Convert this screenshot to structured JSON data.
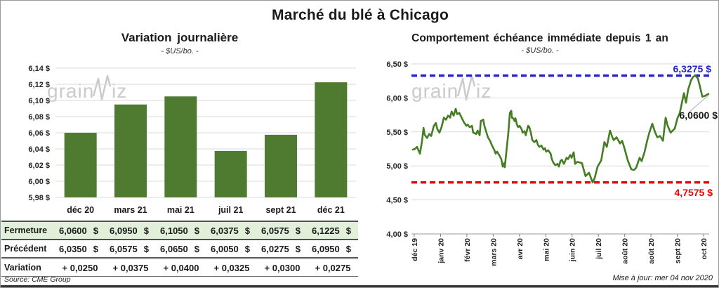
{
  "title": "Marché du blé à Chicago",
  "watermark": {
    "text": "grainwiz"
  },
  "footer": {
    "source": "Source: CME Group",
    "updated": "Mise à jour: mer 04 nov 2020"
  },
  "colors": {
    "bar_green": "#4e7b2f",
    "line_green": "#447d22",
    "upper_ref_blue": "#2222cc",
    "lower_ref_red": "#ee0000",
    "variation_green": "#008200",
    "fermeture_row_bg": "#e2efd9",
    "gridline": "#d9d9d9",
    "watermark_gray": "#cbcbcb"
  },
  "table": {
    "row_labels": [
      "Fermeture",
      "Précédent",
      "Variation"
    ],
    "columns": [
      "déc 20",
      "mars 21",
      "mai 21",
      "juil 21",
      "sept 21",
      "déc 21"
    ],
    "fermeture": [
      "6,0600",
      "6,0950",
      "6,1050",
      "6,0375",
      "6,0575",
      "6,1225"
    ],
    "precedent": [
      "6,0350",
      "6,0575",
      "6,0650",
      "6,0050",
      "6,0275",
      "6,0950"
    ],
    "variation": [
      "+ 0,0250",
      "+ 0,0375",
      "+ 0,0400",
      "+ 0,0325",
      "+ 0,0300",
      "+ 0,0275"
    ],
    "currency": "$"
  },
  "chart_data": [
    {
      "type": "bar",
      "title": "Variation journalière",
      "subtitle": "- $US/bo. -",
      "categories": [
        "déc 20",
        "mars 21",
        "mai 21",
        "juil 21",
        "sept 21",
        "déc 21"
      ],
      "values": [
        6.06,
        6.095,
        6.105,
        6.0375,
        6.0575,
        6.1225
      ],
      "ylim": [
        5.98,
        6.14
      ],
      "ytick_labels": [
        "6,14 $",
        "6,12 $",
        "6,10 $",
        "6,08 $",
        "6,06 $",
        "6,04 $",
        "6,02 $",
        "6,00 $",
        "5,98 $"
      ],
      "bar_color": "#4e7b2f",
      "grid": true,
      "legend": "none"
    },
    {
      "type": "line",
      "title": "Comportement échéance immédiate depuis 1 an",
      "subtitle": "- $US/bo. -",
      "x_tick_labels": [
        "déc 19",
        "janv 20",
        "févr 20",
        "mars 20",
        "avr 20",
        "mai 20",
        "juin 20",
        "juil 20",
        "août 20",
        "août 20",
        "sept 20",
        "oct 20"
      ],
      "ylim": [
        4.0,
        6.5
      ],
      "ytick_labels": [
        "6,50 $",
        "6,00 $",
        "5,50 $",
        "5,00 $",
        "4,50 $",
        "4,00 $"
      ],
      "grid": true,
      "legend": "none",
      "ref_lines": [
        {
          "value": 6.3275,
          "label": "6,3275 $",
          "color": "#2222cc"
        },
        {
          "value": 4.7575,
          "label": "4,7575 $",
          "color": "#ee0000"
        }
      ],
      "last_point_label": "6,0600 $",
      "last_value": 6.06,
      "series": [
        {
          "color": "#447d22",
          "points": [
            [
              0.0,
              5.24
            ],
            [
              0.007,
              5.25
            ],
            [
              0.014,
              5.28
            ],
            [
              0.024,
              5.18
            ],
            [
              0.031,
              5.37
            ],
            [
              0.036,
              5.56
            ],
            [
              0.04,
              5.46
            ],
            [
              0.048,
              5.41
            ],
            [
              0.055,
              5.47
            ],
            [
              0.062,
              5.44
            ],
            [
              0.071,
              5.59
            ],
            [
              0.078,
              5.63
            ],
            [
              0.083,
              5.54
            ],
            [
              0.09,
              5.49
            ],
            [
              0.097,
              5.57
            ],
            [
              0.105,
              5.71
            ],
            [
              0.112,
              5.68
            ],
            [
              0.119,
              5.74
            ],
            [
              0.126,
              5.71
            ],
            [
              0.131,
              5.8
            ],
            [
              0.138,
              5.74
            ],
            [
              0.145,
              5.84
            ],
            [
              0.15,
              5.76
            ],
            [
              0.157,
              5.78
            ],
            [
              0.166,
              5.7
            ],
            [
              0.173,
              5.64
            ],
            [
              0.181,
              5.59
            ],
            [
              0.185,
              5.61
            ],
            [
              0.192,
              5.57
            ],
            [
              0.2,
              5.59
            ],
            [
              0.204,
              5.49
            ],
            [
              0.214,
              5.47
            ],
            [
              0.219,
              5.52
            ],
            [
              0.226,
              5.45
            ],
            [
              0.23,
              5.66
            ],
            [
              0.238,
              5.68
            ],
            [
              0.242,
              5.59
            ],
            [
              0.249,
              5.49
            ],
            [
              0.254,
              5.42
            ],
            [
              0.261,
              5.37
            ],
            [
              0.268,
              5.3
            ],
            [
              0.276,
              5.23
            ],
            [
              0.28,
              5.18
            ],
            [
              0.285,
              5.21
            ],
            [
              0.292,
              5.16
            ],
            [
              0.299,
              5.1
            ],
            [
              0.304,
              4.99
            ],
            [
              0.309,
              5.04
            ],
            [
              0.311,
              4.98
            ],
            [
              0.318,
              5.28
            ],
            [
              0.323,
              5.49
            ],
            [
              0.328,
              5.78
            ],
            [
              0.333,
              5.81
            ],
            [
              0.335,
              5.71
            ],
            [
              0.34,
              5.7
            ],
            [
              0.344,
              5.66
            ],
            [
              0.347,
              5.7
            ],
            [
              0.352,
              5.61
            ],
            [
              0.356,
              5.57
            ],
            [
              0.361,
              5.59
            ],
            [
              0.368,
              5.54
            ],
            [
              0.371,
              5.49
            ],
            [
              0.378,
              5.51
            ],
            [
              0.382,
              5.45
            ],
            [
              0.39,
              5.59
            ],
            [
              0.394,
              5.57
            ],
            [
              0.399,
              5.49
            ],
            [
              0.404,
              5.38
            ],
            [
              0.411,
              5.35
            ],
            [
              0.418,
              5.38
            ],
            [
              0.423,
              5.31
            ],
            [
              0.428,
              5.28
            ],
            [
              0.435,
              5.3
            ],
            [
              0.442,
              5.24
            ],
            [
              0.447,
              5.26
            ],
            [
              0.451,
              5.21
            ],
            [
              0.458,
              5.23
            ],
            [
              0.466,
              5.18
            ],
            [
              0.47,
              5.1
            ],
            [
              0.475,
              5.05
            ],
            [
              0.482,
              5.01
            ],
            [
              0.489,
              5.03
            ],
            [
              0.494,
              4.99
            ],
            [
              0.499,
              5.07
            ],
            [
              0.504,
              5.09
            ],
            [
              0.511,
              5.03
            ],
            [
              0.515,
              5.07
            ],
            [
              0.52,
              5.12
            ],
            [
              0.525,
              5.1
            ],
            [
              0.532,
              5.16
            ],
            [
              0.537,
              5.12
            ],
            [
              0.544,
              5.2
            ],
            [
              0.549,
              5.03
            ],
            [
              0.556,
              5.06
            ],
            [
              0.565,
              5.05
            ],
            [
              0.572,
              5.04
            ],
            [
              0.584,
              4.85
            ],
            [
              0.596,
              4.9
            ],
            [
              0.608,
              4.7575
            ],
            [
              0.615,
              4.82
            ],
            [
              0.625,
              4.99
            ],
            [
              0.637,
              5.08
            ],
            [
              0.648,
              5.35
            ],
            [
              0.656,
              5.28
            ],
            [
              0.667,
              5.52
            ],
            [
              0.675,
              5.42
            ],
            [
              0.679,
              5.38
            ],
            [
              0.689,
              5.42
            ],
            [
              0.701,
              5.33
            ],
            [
              0.708,
              5.37
            ],
            [
              0.717,
              5.24
            ],
            [
              0.727,
              5.08
            ],
            [
              0.739,
              4.95
            ],
            [
              0.748,
              4.94
            ],
            [
              0.755,
              4.97
            ],
            [
              0.767,
              5.12
            ],
            [
              0.774,
              5.07
            ],
            [
              0.784,
              5.21
            ],
            [
              0.793,
              5.38
            ],
            [
              0.8,
              5.49
            ],
            [
              0.81,
              5.62
            ],
            [
              0.819,
              5.5
            ],
            [
              0.827,
              5.42
            ],
            [
              0.836,
              5.44
            ],
            [
              0.846,
              5.37
            ],
            [
              0.855,
              5.71
            ],
            [
              0.862,
              5.59
            ],
            [
              0.872,
              5.49
            ],
            [
              0.879,
              5.52
            ],
            [
              0.886,
              5.55
            ],
            [
              0.895,
              5.7
            ],
            [
              0.903,
              5.78
            ],
            [
              0.912,
              5.97
            ],
            [
              0.917,
              6.07
            ],
            [
              0.924,
              5.93
            ],
            [
              0.931,
              6.12
            ],
            [
              0.941,
              6.26
            ],
            [
              0.948,
              6.31
            ],
            [
              0.955,
              6.3275
            ],
            [
              0.964,
              6.29
            ],
            [
              0.971,
              6.17
            ],
            [
              0.979,
              6.02
            ],
            [
              0.988,
              6.03
            ],
            [
              1.0,
              6.06
            ]
          ]
        }
      ]
    }
  ]
}
